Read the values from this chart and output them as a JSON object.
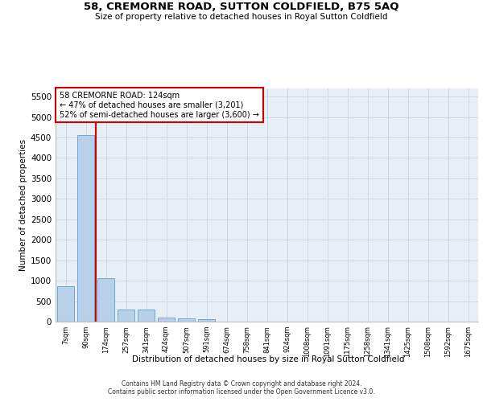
{
  "title": "58, CREMORNE ROAD, SUTTON COLDFIELD, B75 5AQ",
  "subtitle": "Size of property relative to detached houses in Royal Sutton Coldfield",
  "xlabel": "Distribution of detached houses by size in Royal Sutton Coldfield",
  "ylabel": "Number of detached properties",
  "bar_color": "#b8d0ea",
  "bar_edge_color": "#6aaad4",
  "grid_color": "#cdd8e8",
  "background_color": "#e8eef6",
  "categories": [
    "7sqm",
    "90sqm",
    "174sqm",
    "257sqm",
    "341sqm",
    "424sqm",
    "507sqm",
    "591sqm",
    "674sqm",
    "758sqm",
    "841sqm",
    "924sqm",
    "1008sqm",
    "1091sqm",
    "1175sqm",
    "1258sqm",
    "1341sqm",
    "1425sqm",
    "1508sqm",
    "1592sqm",
    "1675sqm"
  ],
  "values": [
    870,
    4560,
    1060,
    290,
    290,
    90,
    80,
    60,
    0,
    0,
    0,
    0,
    0,
    0,
    0,
    0,
    0,
    0,
    0,
    0,
    0
  ],
  "ylim": [
    0,
    5700
  ],
  "yticks": [
    0,
    500,
    1000,
    1500,
    2000,
    2500,
    3000,
    3500,
    4000,
    4500,
    5000,
    5500
  ],
  "property_line_color": "#cc0000",
  "property_line_xindex": 1.5,
  "annotation_title": "58 CREMORNE ROAD: 124sqm",
  "annotation_line1": "← 47% of detached houses are smaller (3,201)",
  "annotation_line2": "52% of semi-detached houses are larger (3,600) →",
  "annotation_box_color": "#cc0000",
  "footer_line1": "Contains HM Land Registry data © Crown copyright and database right 2024.",
  "footer_line2": "Contains public sector information licensed under the Open Government Licence v3.0."
}
